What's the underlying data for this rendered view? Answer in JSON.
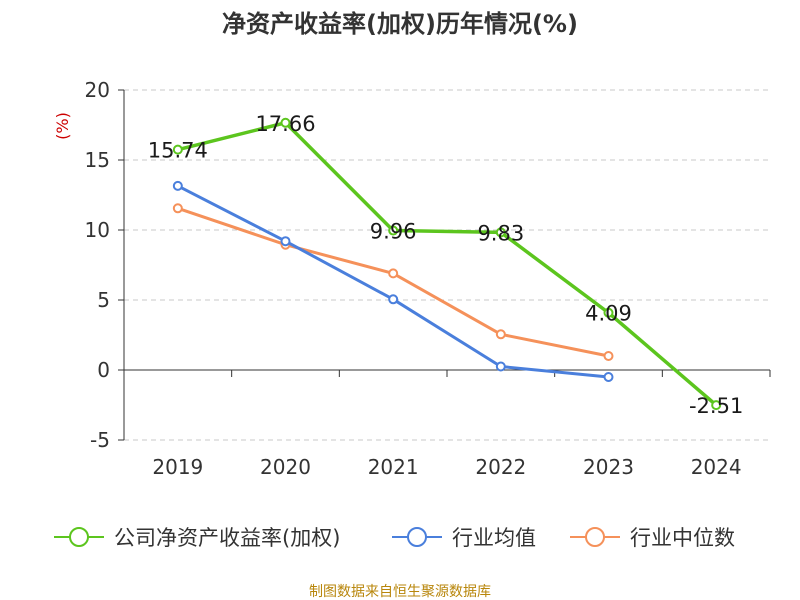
{
  "chart_data": {
    "type": "line",
    "title": "净资产收益率(加权)历年情况(%)",
    "ylabel": "(%)",
    "categories": [
      "2019",
      "2020",
      "2021",
      "2022",
      "2023",
      "2024"
    ],
    "ylim": [
      -5,
      20
    ],
    "yticks": [
      -5,
      0,
      5,
      10,
      15,
      20
    ],
    "grid": true,
    "legend_position": "bottom",
    "series": [
      {
        "name": "公司净资产收益率(加权)",
        "color": "#5cc51e",
        "values": [
          15.74,
          17.66,
          9.96,
          9.83,
          4.09,
          -2.51
        ],
        "labels": [
          "15.74",
          "17.66",
          "9.96",
          "9.83",
          "4.09",
          "-2.51"
        ]
      },
      {
        "name": "行业均值",
        "color": "#4a7fdc",
        "values": [
          13.15,
          9.2,
          5.05,
          0.25,
          -0.5,
          null
        ]
      },
      {
        "name": "行业中位数",
        "color": "#f5915a",
        "values": [
          11.55,
          8.95,
          6.9,
          2.55,
          1.0,
          null
        ]
      }
    ]
  },
  "source": "制图数据来自恒生聚源数据库"
}
